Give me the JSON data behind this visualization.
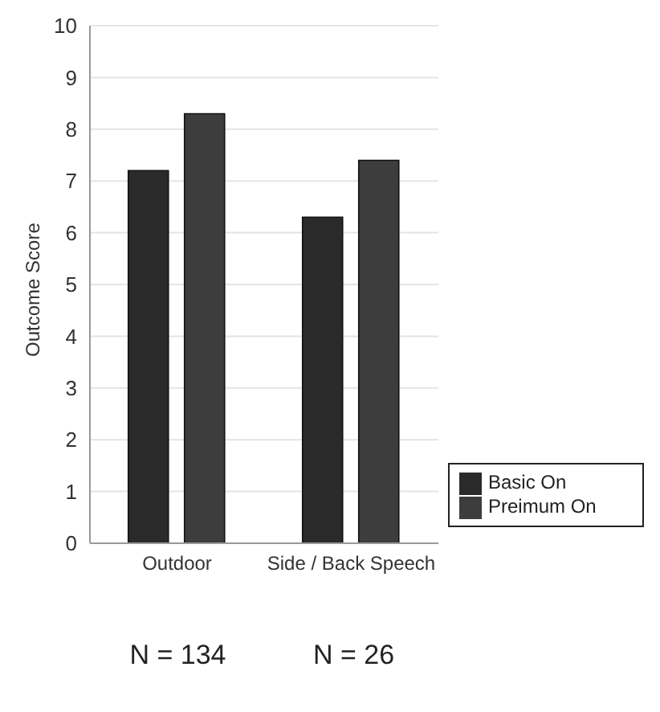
{
  "chart_data": {
    "type": "bar",
    "ylabel": "Outcome Score",
    "categories": [
      "Outdoor",
      "Side / Back Speech"
    ],
    "series": [
      {
        "name": "Basic On",
        "color": "#2a2a2a",
        "values": [
          7.2,
          6.3
        ]
      },
      {
        "name": "Preimum On",
        "color": "#3d3d3d",
        "values": [
          8.3,
          7.4
        ]
      }
    ],
    "ylim": [
      0,
      10
    ],
    "yticks": [
      0,
      1,
      2,
      3,
      4,
      5,
      6,
      7,
      8,
      9,
      10
    ],
    "grid": "y",
    "legend": "bottom right",
    "annotations": [
      "N = 134",
      "N = 26"
    ]
  }
}
